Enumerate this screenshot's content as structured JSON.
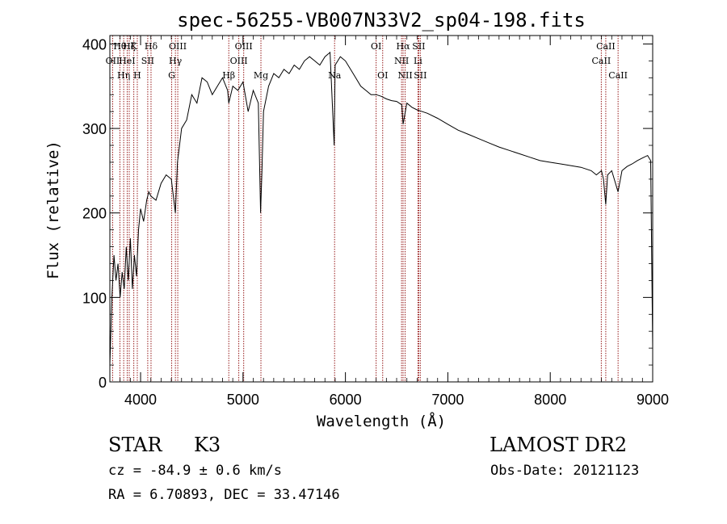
{
  "chart_data": {
    "type": "line",
    "title": "spec-56255-VB007N33V2_sp04-198.fits",
    "xlabel": "Wavelength (Å)",
    "ylabel": "Flux (relative)",
    "xlim": [
      3700,
      9000
    ],
    "ylim": [
      0,
      410
    ],
    "xticks": [
      4000,
      5000,
      6000,
      7000,
      8000,
      9000
    ],
    "xtick_labels": [
      "4000",
      "5000",
      "6000",
      "7000",
      "8000",
      "9000"
    ],
    "yticks": [
      0,
      100,
      200,
      300,
      400
    ],
    "ytick_labels": [
      "0",
      "100",
      "200",
      "300",
      "400"
    ],
    "grid": false,
    "line_color": "#000000",
    "marker_color": "#8b0000",
    "series": [
      {
        "x": [
          3700,
          3720,
          3740,
          3760,
          3780,
          3800,
          3820,
          3840,
          3860,
          3880,
          3900,
          3920,
          3940,
          3960,
          3980,
          4000,
          4030,
          4060,
          4080,
          4100,
          4150,
          4200,
          4250,
          4300,
          4340,
          4360,
          4400,
          4450,
          4500,
          4550,
          4600,
          4650,
          4700,
          4750,
          4800,
          4850,
          4861,
          4900,
          4950,
          5000,
          5050,
          5100,
          5150,
          5172,
          5185,
          5200,
          5250,
          5300,
          5350,
          5400,
          5450,
          5500,
          5550,
          5600,
          5650,
          5700,
          5750,
          5800,
          5850,
          5890,
          5900,
          5950,
          6000,
          6050,
          6100,
          6150,
          6200,
          6250,
          6300,
          6350,
          6400,
          6450,
          6500,
          6550,
          6563,
          6600,
          6650,
          6700,
          6750,
          6800,
          6900,
          7000,
          7100,
          7200,
          7300,
          7400,
          7500,
          7600,
          7700,
          7800,
          7900,
          8000,
          8100,
          8200,
          8300,
          8400,
          8450,
          8500,
          8520,
          8542,
          8560,
          8600,
          8662,
          8700,
          8750,
          8800,
          8850,
          8900,
          8950,
          8980,
          9000
        ],
        "y": [
          20,
          100,
          150,
          120,
          140,
          100,
          130,
          110,
          160,
          120,
          170,
          110,
          150,
          125,
          180,
          205,
          190,
          215,
          225,
          220,
          215,
          235,
          245,
          240,
          200,
          260,
          300,
          310,
          340,
          330,
          360,
          355,
          340,
          350,
          360,
          345,
          330,
          350,
          345,
          355,
          320,
          345,
          330,
          200,
          250,
          320,
          350,
          365,
          360,
          370,
          365,
          375,
          370,
          380,
          385,
          380,
          375,
          385,
          390,
          280,
          375,
          385,
          380,
          370,
          360,
          350,
          345,
          340,
          340,
          338,
          335,
          333,
          332,
          328,
          305,
          330,
          325,
          322,
          320,
          318,
          312,
          305,
          298,
          293,
          288,
          283,
          278,
          274,
          270,
          266,
          262,
          260,
          258,
          256,
          254,
          250,
          245,
          250,
          240,
          210,
          245,
          250,
          225,
          250,
          255,
          258,
          262,
          265,
          268,
          262,
          40
        ]
      }
    ],
    "line_markers": [
      {
        "x": 3727,
        "label": "OII",
        "row": 1
      },
      {
        "x": 3798,
        "label": "Hθ",
        "row": 0
      },
      {
        "x": 3835,
        "label": "Hη",
        "row": 2
      },
      {
        "x": 3869,
        "label": "HeI",
        "row": 1
      },
      {
        "x": 3889,
        "label": "Hζ",
        "row": 0
      },
      {
        "x": 3934,
        "label": "K",
        "row": 0
      },
      {
        "x": 3968,
        "label": "H",
        "row": 2
      },
      {
        "x": 4070,
        "label": "SII",
        "row": 1
      },
      {
        "x": 4102,
        "label": "Hδ",
        "row": 0
      },
      {
        "x": 4304,
        "label": "G",
        "row": 2
      },
      {
        "x": 4340,
        "label": "Hγ",
        "row": 1
      },
      {
        "x": 4363,
        "label": "OIII",
        "row": 0
      },
      {
        "x": 4861,
        "label": "Hβ",
        "row": 2
      },
      {
        "x": 4959,
        "label": "OIII",
        "row": 1
      },
      {
        "x": 5007,
        "label": "OIII",
        "row": 0
      },
      {
        "x": 5175,
        "label": "Mg",
        "row": 2
      },
      {
        "x": 5894,
        "label": "Na",
        "row": 2
      },
      {
        "x": 6300,
        "label": "OI",
        "row": 0
      },
      {
        "x": 6364,
        "label": "OI",
        "row": 2
      },
      {
        "x": 6548,
        "label": "NII",
        "row": 1
      },
      {
        "x": 6563,
        "label": "Hα",
        "row": 0
      },
      {
        "x": 6583,
        "label": "NII",
        "row": 2
      },
      {
        "x": 6708,
        "label": "Li",
        "row": 1
      },
      {
        "x": 6716,
        "label": "SII",
        "row": 0
      },
      {
        "x": 6731,
        "label": "SII",
        "row": 2
      },
      {
        "x": 8498,
        "label": "CaII",
        "row": 1
      },
      {
        "x": 8542,
        "label": "CaII",
        "row": 0
      },
      {
        "x": 8662,
        "label": "CaII",
        "row": 2
      }
    ]
  },
  "info": {
    "class": "STAR",
    "subclass": "K3",
    "survey": "LAMOST DR2",
    "cz": "cz = -84.9 ± 0.6 km/s",
    "obs_date": "Obs-Date: 20121123",
    "radec": "RA =   6.70893, DEC =  33.47146"
  }
}
